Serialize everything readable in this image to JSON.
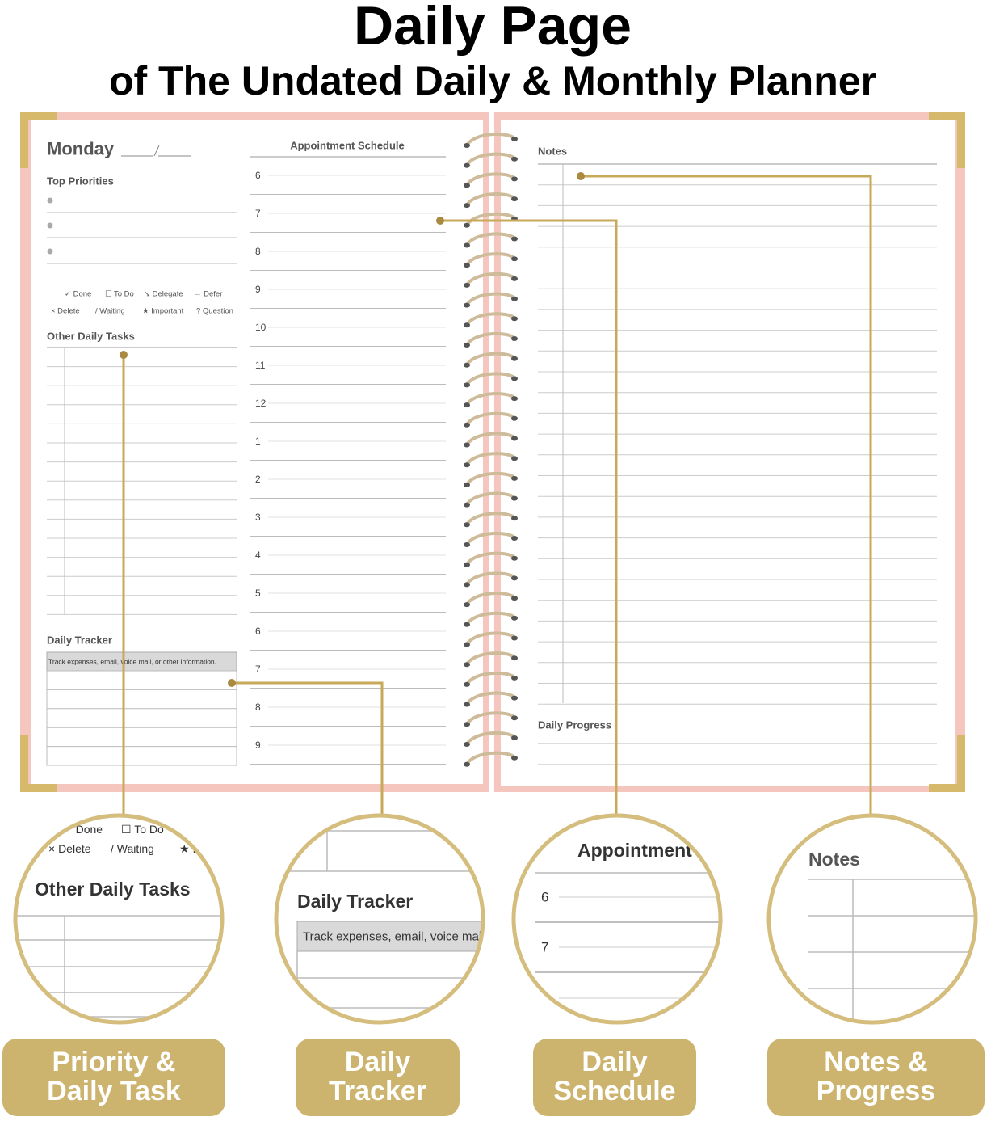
{
  "header": {
    "title": "Daily Page",
    "subtitle": "of The Undated Daily & Monthly Planner"
  },
  "left_page": {
    "day": "Monday",
    "top_priorities": "Top Priorities",
    "legend": [
      "✓ Done",
      "☐ To Do",
      "↘ Delegate",
      "→ Defer",
      "× Delete",
      "/ Waiting",
      "★ Important",
      "? Question"
    ],
    "other_tasks": "Other Daily Tasks",
    "tracker": {
      "title": "Daily Tracker",
      "hint": "Track expenses, email, voice mail, or other information."
    }
  },
  "schedule": {
    "title": "Appointment Schedule",
    "hours": [
      6,
      7,
      8,
      9,
      10,
      11,
      12,
      1,
      2,
      3,
      4,
      5,
      6,
      7,
      8,
      9
    ]
  },
  "right_page": {
    "notes": "Notes",
    "progress": "Daily Progress"
  },
  "features": [
    {
      "lines": [
        "Priority &",
        "Daily Task"
      ]
    },
    {
      "lines": [
        "Daily",
        "Tracker"
      ]
    },
    {
      "lines": [
        "Daily",
        "Schedule"
      ]
    },
    {
      "lines": [
        "Notes &",
        "Progress"
      ]
    }
  ]
}
